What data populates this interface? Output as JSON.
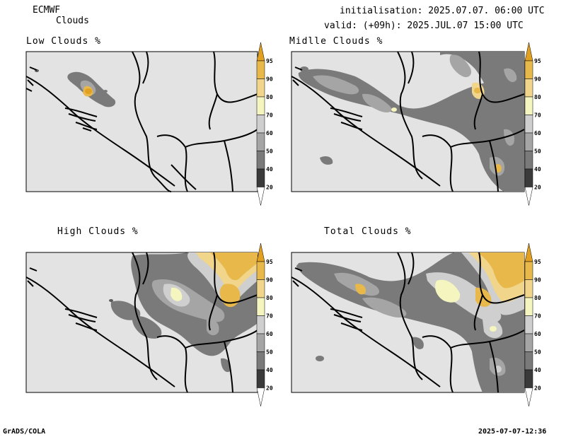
{
  "header": {
    "model": "ECMWF",
    "product": "Clouds",
    "init_line": "initialisation: 2025.07.07. 06:00 UTC",
    "valid_line": "valid: (+09h): 2025.JUL.07 15:00 UTC"
  },
  "panels": [
    {
      "title": "Low Clouds %"
    },
    {
      "title": "Midlle Clouds %"
    },
    {
      "title": "High Clouds %"
    },
    {
      "title": "Total Clouds %"
    }
  ],
  "colorbar": {
    "levels": [
      "20",
      "40",
      "50",
      "60",
      "70",
      "80",
      "90",
      "95"
    ],
    "colors": {
      "below20": "#ffffff",
      "c20_40": "#3a3a3a",
      "c40_50": "#7a7a7a",
      "c50_60": "#a5a5a5",
      "c60_70": "#cfcfcf",
      "c70_80": "#f5f5c0",
      "c80_90": "#f0d58a",
      "c90_95": "#e8b84a",
      "above95": "#e2a020"
    }
  },
  "footer": {
    "left": "GrADS/COLA",
    "right": "2025-07-07-12:36"
  }
}
